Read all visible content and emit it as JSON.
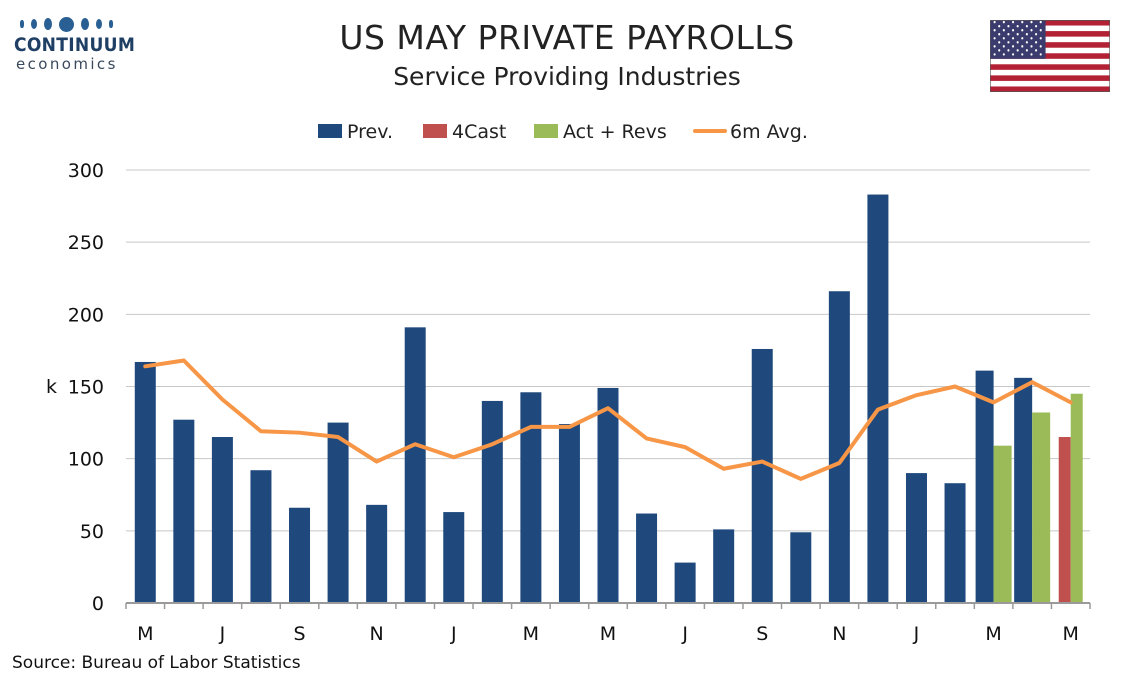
{
  "brand": {
    "name": "CONTINUUM",
    "sub": "economics"
  },
  "chart_data": {
    "type": "bar",
    "title": "US MAY PRIVATE PAYROLLS",
    "subtitle": "Service Providing Industries",
    "ylabel": "k",
    "ylim": [
      0,
      300
    ],
    "yticks": [
      0,
      50,
      100,
      150,
      200,
      250,
      300
    ],
    "grid": true,
    "legend_position": "top",
    "source": "Source: Bureau of Labor Statistics",
    "xtick_labels": [
      "M",
      "J",
      "S",
      "N",
      "J",
      "M",
      "M",
      "J",
      "S",
      "N",
      "J",
      "M",
      "M"
    ],
    "colors": {
      "prev": "#1f497d",
      "fcast": "#c0504d",
      "act": "#9bbb59",
      "avg": "#f79646"
    },
    "series": [
      {
        "name": "Prev.",
        "type": "bar",
        "values": [
          167,
          127,
          115,
          92,
          66,
          125,
          68,
          191,
          63,
          140,
          146,
          124,
          149,
          62,
          28,
          51,
          176,
          49,
          216,
          283,
          90,
          83,
          161,
          156,
          null
        ]
      },
      {
        "name": "4Cast",
        "type": "bar",
        "values": [
          null,
          null,
          null,
          null,
          null,
          null,
          null,
          null,
          null,
          null,
          null,
          null,
          null,
          null,
          null,
          null,
          null,
          null,
          null,
          null,
          null,
          null,
          null,
          null,
          115
        ]
      },
      {
        "name": "Act + Revs",
        "type": "bar",
        "values": [
          null,
          null,
          null,
          null,
          null,
          null,
          null,
          null,
          null,
          null,
          null,
          null,
          null,
          null,
          null,
          null,
          null,
          null,
          null,
          null,
          null,
          null,
          109,
          132,
          145
        ]
      },
      {
        "name": "6m Avg.",
        "type": "line",
        "values": [
          164,
          168,
          141,
          119,
          118,
          115,
          98,
          110,
          101,
          110,
          122,
          122,
          135,
          114,
          108,
          93,
          98,
          86,
          97,
          134,
          144,
          150,
          139,
          153,
          139
        ]
      }
    ]
  }
}
